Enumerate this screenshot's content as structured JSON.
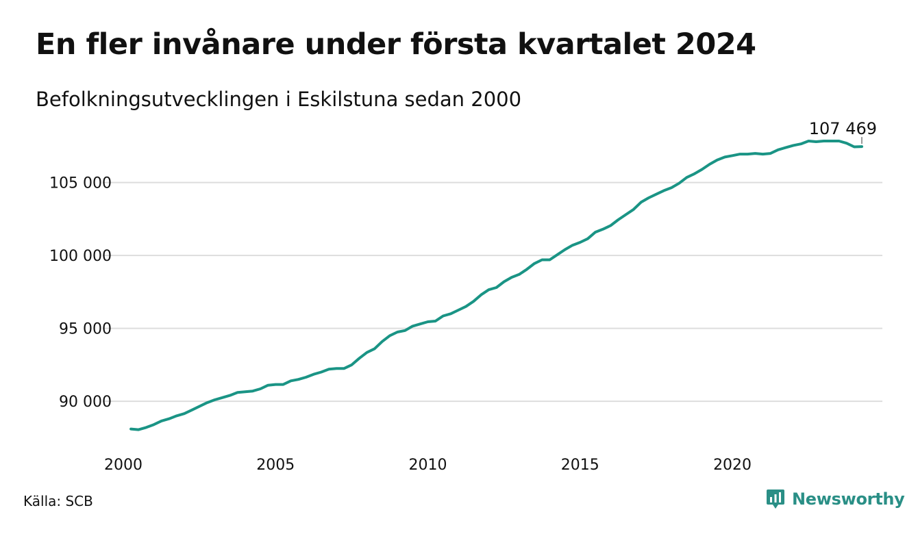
{
  "title": "En fler invånare under första kvartalet 2024",
  "subtitle": "Befolkningsutvecklingen i Eskilstuna sedan 2000",
  "source": "Källa: SCB",
  "brand": {
    "name": "Newsworthy",
    "icon": "newsworthy-logo-icon",
    "color": "#2a8f86"
  },
  "chart_data": {
    "type": "line",
    "title": "En fler invånare under första kvartalet 2024",
    "subtitle": "Befolkningsutvecklingen i Eskilstuna sedan 2000",
    "xlabel": "",
    "ylabel": "",
    "xlim": [
      2000,
      2024.25
    ],
    "ylim": [
      87000,
      108600
    ],
    "grid": true,
    "line_color": "#1a9485",
    "x_ticks": [
      2000,
      2005,
      2010,
      2015,
      2020
    ],
    "y_ticks": [
      90000,
      95000,
      100000,
      105000
    ],
    "y_tick_labels": [
      "90 000",
      "95 000",
      "100 000",
      "105 000"
    ],
    "end_label": "107 469",
    "series": [
      {
        "name": "",
        "x": [
          2000.25,
          2000.5,
          2000.75,
          2001.0,
          2001.25,
          2001.5,
          2001.75,
          2002.0,
          2002.25,
          2002.5,
          2002.75,
          2003.0,
          2003.25,
          2003.5,
          2003.75,
          2004.0,
          2004.25,
          2004.5,
          2004.75,
          2005.0,
          2005.25,
          2005.5,
          2005.75,
          2006.0,
          2006.25,
          2006.5,
          2006.75,
          2007.0,
          2007.25,
          2007.5,
          2007.75,
          2008.0,
          2008.25,
          2008.5,
          2008.75,
          2009.0,
          2009.25,
          2009.5,
          2009.75,
          2010.0,
          2010.25,
          2010.5,
          2010.75,
          2011.0,
          2011.25,
          2011.5,
          2011.75,
          2012.0,
          2012.25,
          2012.5,
          2012.75,
          2013.0,
          2013.25,
          2013.5,
          2013.75,
          2014.0,
          2014.25,
          2014.5,
          2014.75,
          2015.0,
          2015.25,
          2015.5,
          2015.75,
          2016.0,
          2016.25,
          2016.5,
          2016.75,
          2017.0,
          2017.25,
          2017.5,
          2017.75,
          2018.0,
          2018.25,
          2018.5,
          2018.75,
          2019.0,
          2019.25,
          2019.5,
          2019.75,
          2020.0,
          2020.25,
          2020.5,
          2020.75,
          2021.0,
          2021.25,
          2021.5,
          2021.75,
          2022.0,
          2022.25,
          2022.5,
          2022.75,
          2023.0,
          2023.25,
          2023.5,
          2023.75,
          2024.0,
          2024.25
        ],
        "y": [
          88100,
          88050,
          88200,
          88400,
          88650,
          88800,
          89000,
          89150,
          89400,
          89650,
          89900,
          90100,
          90250,
          90400,
          90600,
          90650,
          90700,
          90850,
          91100,
          91150,
          91150,
          91400,
          91500,
          91650,
          91850,
          92000,
          92200,
          92250,
          92250,
          92500,
          92950,
          93350,
          93600,
          94100,
          94500,
          94750,
          94850,
          95150,
          95300,
          95450,
          95500,
          95850,
          96000,
          96250,
          96500,
          96850,
          97300,
          97650,
          97800,
          98200,
          98500,
          98700,
          99050,
          99450,
          99700,
          99700,
          100050,
          100400,
          100700,
          100900,
          101150,
          101600,
          101800,
          102050,
          102450,
          102800,
          103150,
          103650,
          103950,
          104200,
          104450,
          104650,
          104950,
          105350,
          105600,
          105900,
          106250,
          106550,
          106750,
          106850,
          106950,
          106950,
          107000,
          106950,
          107000,
          107250,
          107400,
          107550,
          107650,
          107850,
          107800,
          107850,
          107850,
          107850,
          107700,
          107450,
          107469
        ]
      }
    ]
  }
}
